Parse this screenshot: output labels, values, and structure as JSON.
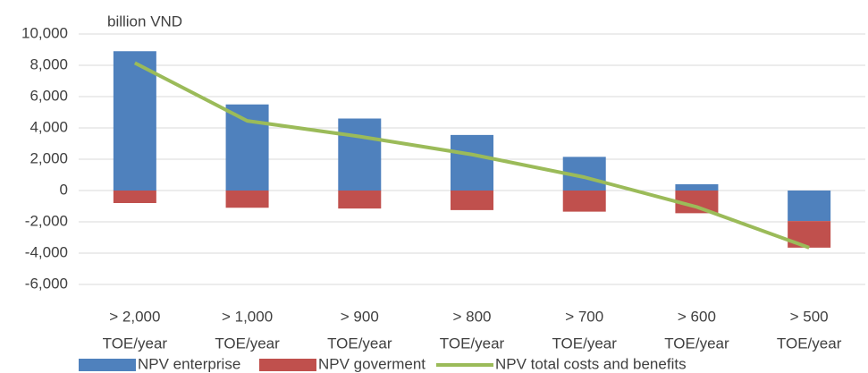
{
  "chart_data": {
    "type": "bar-line",
    "y_axis_label": "billion VND",
    "categories": [
      [
        "> 2,000",
        "TOE/year"
      ],
      [
        "> 1,000",
        "TOE/year"
      ],
      [
        "> 900",
        "TOE/year"
      ],
      [
        "> 800",
        "TOE/year"
      ],
      [
        "> 700",
        "TOE/year"
      ],
      [
        "> 600",
        "TOE/year"
      ],
      [
        "> 500",
        "TOE/year"
      ]
    ],
    "series": [
      {
        "name": "NPV enterprise",
        "type": "bar",
        "color": "#4f81bd",
        "values": [
          8900,
          5500,
          4600,
          3550,
          2150,
          400,
          -1950
        ]
      },
      {
        "name": "NPV goverment",
        "type": "bar",
        "color": "#c0504d",
        "values": [
          -800,
          -1100,
          -1150,
          -1250,
          -1350,
          -1450,
          -1700
        ]
      },
      {
        "name": "NPV total costs and benefits",
        "type": "line",
        "color": "#9bbb59",
        "values": [
          8150,
          4450,
          3450,
          2300,
          850,
          -1050,
          -3650
        ]
      }
    ],
    "ylim": [
      -6000,
      10000
    ],
    "yticks": [
      {
        "value": -6000,
        "label": "-6,000"
      },
      {
        "value": -4000,
        "label": "-4,000"
      },
      {
        "value": -2000,
        "label": "-2,000"
      },
      0,
      {
        "value": 2000,
        "label": "2,000"
      },
      {
        "value": 4000,
        "label": "4,000"
      },
      {
        "value": 6000,
        "label": "6,000"
      },
      {
        "value": 8000,
        "label": "8,000"
      },
      {
        "value": 10000,
        "label": "10,000"
      }
    ],
    "grid": true
  }
}
